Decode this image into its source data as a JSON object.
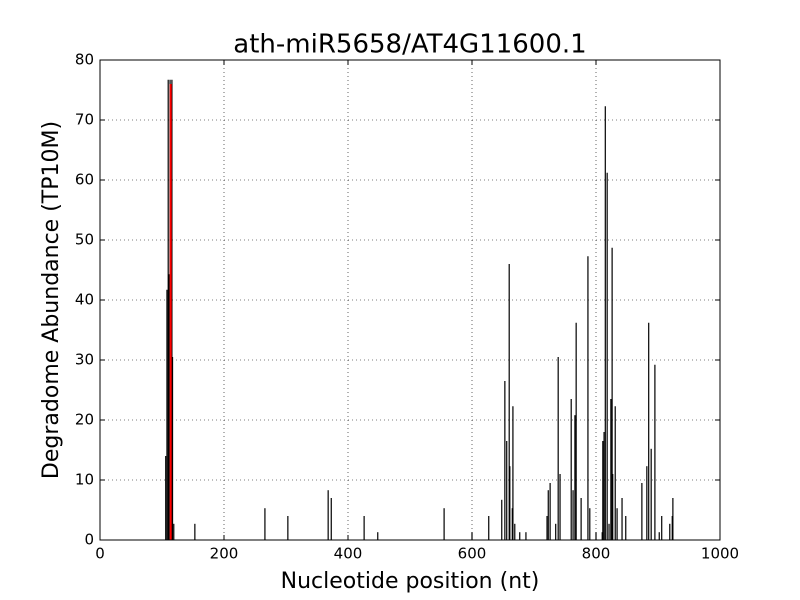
{
  "chart_data": {
    "type": "stem",
    "title": "ath-miR5658/AT4G11600.1",
    "x_label": "Nucleotide position (nt)",
    "y_label": "Degradome Abundance (TP10M)",
    "xlim": [
      0,
      1000
    ],
    "xticks": [
      0,
      200,
      400,
      600,
      800,
      1000
    ],
    "ylim": [
      0,
      80
    ],
    "yticks": [
      0,
      10,
      20,
      30,
      40,
      50,
      60,
      70,
      80
    ],
    "grid": true,
    "series": [
      {
        "color": "#000000",
        "x": [
          106,
          108,
          110,
          111,
          113,
          116,
          117,
          119,
          153,
          266,
          303,
          368,
          373,
          426,
          448,
          555,
          600,
          627,
          648,
          653,
          656,
          660,
          661,
          665,
          666,
          669,
          677,
          687,
          721,
          723,
          726,
          735,
          739,
          742,
          760,
          763,
          766,
          768,
          776,
          787,
          790,
          800,
          810,
          811,
          813,
          815,
          818,
          821,
          824,
          826,
          827,
          831,
          834,
          842,
          848,
          874,
          882,
          885,
          889,
          895,
          902,
          906,
          919,
          923,
          924
        ],
        "values": [
          14,
          41.7,
          76.7,
          44.3,
          76.7,
          76.7,
          30.5,
          2.7,
          2.7,
          5.3,
          4,
          8.3,
          7,
          4,
          1.3,
          5.3,
          1.3,
          4,
          6.7,
          26.5,
          16.5,
          46,
          12.3,
          5.3,
          22.3,
          2.7,
          1.3,
          1.3,
          4,
          8.3,
          9.5,
          2.7,
          30.5,
          11,
          23.5,
          8.3,
          20.8,
          36.2,
          7,
          47.3,
          5.3,
          1.3,
          1.3,
          16.5,
          18,
          72.3,
          61.2,
          2.7,
          23.5,
          48.7,
          11,
          22.3,
          5.3,
          7,
          4,
          9.5,
          12.3,
          36.2,
          15.2,
          29.2,
          1.3,
          4,
          2.7,
          4,
          7
        ]
      },
      {
        "color": "#ff0000",
        "x": [
          114
        ],
        "values": [
          76
        ]
      }
    ]
  }
}
